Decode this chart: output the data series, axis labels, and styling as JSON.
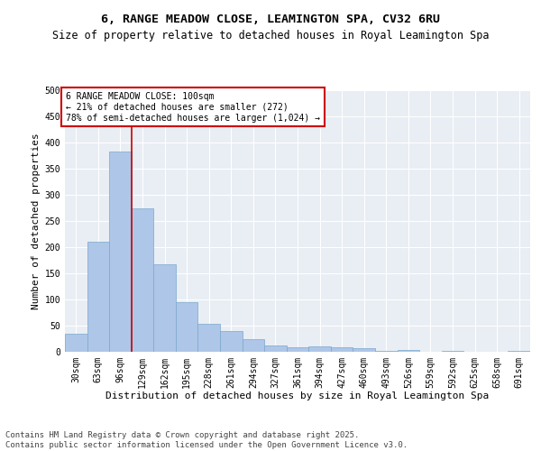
{
  "title": "6, RANGE MEADOW CLOSE, LEAMINGTON SPA, CV32 6RU",
  "subtitle": "Size of property relative to detached houses in Royal Leamington Spa",
  "xlabel": "Distribution of detached houses by size in Royal Leamington Spa",
  "ylabel": "Number of detached properties",
  "categories": [
    "30sqm",
    "63sqm",
    "96sqm",
    "129sqm",
    "162sqm",
    "195sqm",
    "228sqm",
    "261sqm",
    "294sqm",
    "327sqm",
    "361sqm",
    "394sqm",
    "427sqm",
    "460sqm",
    "493sqm",
    "526sqm",
    "559sqm",
    "592sqm",
    "625sqm",
    "658sqm",
    "691sqm"
  ],
  "values": [
    35,
    210,
    383,
    275,
    168,
    94,
    53,
    39,
    24,
    12,
    8,
    10,
    9,
    7,
    1,
    4,
    0,
    1,
    0,
    0,
    2
  ],
  "bar_color": "#aec6e8",
  "bar_edge_color": "#7aa8cc",
  "vline_x_index": 2,
  "vline_color": "#cc0000",
  "annotation_line1": "6 RANGE MEADOW CLOSE: 100sqm",
  "annotation_line2": "← 21% of detached houses are smaller (272)",
  "annotation_line3": "78% of semi-detached houses are larger (1,024) →",
  "annotation_box_color": "#cc0000",
  "ylim": [
    0,
    500
  ],
  "yticks": [
    0,
    50,
    100,
    150,
    200,
    250,
    300,
    350,
    400,
    450,
    500
  ],
  "bg_color": "#e8eef4",
  "grid_color": "#ffffff",
  "footer": "Contains HM Land Registry data © Crown copyright and database right 2025.\nContains public sector information licensed under the Open Government Licence v3.0.",
  "title_fontsize": 9.5,
  "subtitle_fontsize": 8.5,
  "axis_label_fontsize": 8,
  "tick_fontsize": 7,
  "annotation_fontsize": 7,
  "footer_fontsize": 6.5
}
